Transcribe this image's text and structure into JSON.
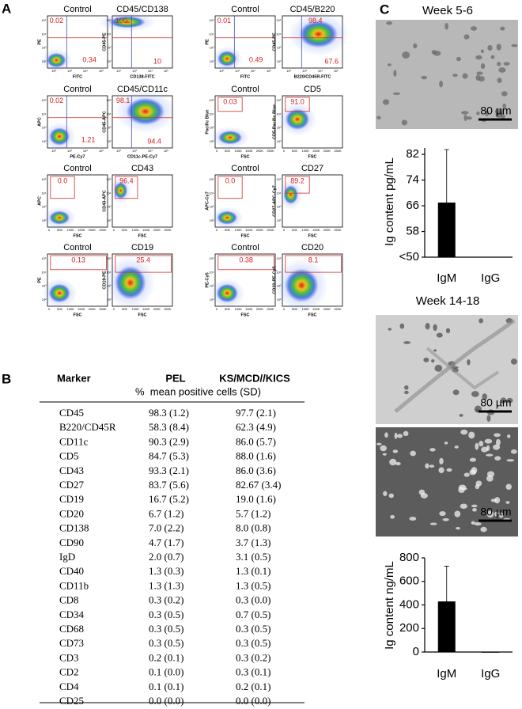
{
  "panel_labels": [
    "A",
    "B",
    "C"
  ],
  "flow": {
    "log_ticks": [
      "10²",
      "10³",
      "10⁴",
      "10⁵"
    ],
    "fsc_ticks": [
      "0",
      "50K",
      "100K",
      "150K",
      "200K",
      "250K"
    ],
    "plots": [
      {
        "title": "Control",
        "y_label": "PE",
        "x_label": "FITC",
        "gates": [
          "0.02",
          "0.34"
        ]
      },
      {
        "title": "CD45/CD138",
        "y_label": "CD45-PE",
        "x_label": "CD138-FITC",
        "gates": [
          "100",
          "10"
        ]
      },
      {
        "title": "Control",
        "y_label": "PE",
        "x_label": "FITC",
        "gates": [
          "0.01",
          "0.49"
        ]
      },
      {
        "title": "CD45/B220",
        "y_label": "CD45-PE",
        "x_label": "B220/CD45R-FITC",
        "gates": [
          "98.4",
          "67.6"
        ]
      },
      {
        "title": "Control",
        "y_label": "APC",
        "x_label": "PE-Cy7",
        "gates": [
          "0.02",
          "1.21"
        ]
      },
      {
        "title": "CD45/CD11c",
        "y_label": "CD45-APC",
        "x_label": "CD11c-PE-Cy7",
        "gates": [
          "98.1",
          "94.4"
        ]
      },
      {
        "title": "Control",
        "y_label": "Pacific Blue",
        "x_label": "FSC",
        "gates": [
          "0.03"
        ]
      },
      {
        "title": "CD5",
        "y_label": "CD5-Pacific Blue",
        "x_label": "FSC",
        "gates": [
          "91.0"
        ]
      },
      {
        "title": "Control",
        "y_label": "APC",
        "x_label": "FSC",
        "gates": [
          "0.0"
        ]
      },
      {
        "title": "CD43",
        "y_label": "CD43-APC",
        "x_label": "FSC",
        "gates": [
          "96.4"
        ]
      },
      {
        "title": "Control",
        "y_label": "APC-Cy7",
        "x_label": "FSC",
        "gates": [
          "0.0"
        ]
      },
      {
        "title": "CD27",
        "y_label": "CD27-APC-Cy7",
        "x_label": "FSC",
        "gates": [
          "89.2"
        ]
      },
      {
        "title": "Control",
        "y_label": "PE",
        "x_label": "FSC",
        "gates": [
          "0.13"
        ]
      },
      {
        "title": "CD19",
        "y_label": "CD19-PE",
        "x_label": "FSC",
        "gates": [
          "25.4"
        ]
      },
      {
        "title": "Control",
        "y_label": "PE-Cy5",
        "x_label": "FSC",
        "gates": [
          "0.38"
        ]
      },
      {
        "title": "CD20",
        "y_label": "CD20-PE-Cy5",
        "x_label": "FSC",
        "gates": [
          "8.1"
        ]
      }
    ]
  },
  "table": {
    "headers": [
      "Marker",
      "PEL",
      "KS/MCD//KICS"
    ],
    "subheader": "%  mean positive cells (SD)",
    "rows": [
      [
        "CD45",
        "98.3 (1.2)",
        "97.7 (2.1)"
      ],
      [
        "B220/CD45R",
        "58.3 (8.4)",
        "62.3 (4.9)"
      ],
      [
        "CD11c",
        "90.3 (2.9)",
        "86.0 (5.7)"
      ],
      [
        "CD5",
        "84.7 (5.3)",
        "88.0 (1.6)"
      ],
      [
        "CD43",
        "93.3 (2.1)",
        "86.0 (3.6)"
      ],
      [
        "CD27",
        "83.7 (5.6)",
        "82.67 (3.4)"
      ],
      [
        "CD19",
        "16.7 (5.2)",
        "19.0 (1.6)"
      ],
      [
        "CD20",
        "6.7 (1.2)",
        "5.7 (1.2)"
      ],
      [
        "CD138",
        "7.0 (2.2)",
        "8.0 (0.8)"
      ],
      [
        "CD90",
        "4.7 (1.7)",
        "3.7 (1.3)"
      ],
      [
        "IgD",
        "2.0 (0.7)",
        "3.1 (0.5)"
      ],
      [
        "CD40",
        "1.3 (0.3)",
        "1.3 (0.1)"
      ],
      [
        "CD11b",
        "1.3 (1.3)",
        "1.3 (0.5)"
      ],
      [
        "CD8",
        "0.3 (0.2)",
        "0.3 (0.0)"
      ],
      [
        "CD34",
        "0.3 (0.5)",
        "0.7 (0.5)"
      ],
      [
        "CD68",
        "0.3 (0.5)",
        "0.3 (0.5)"
      ],
      [
        "CD73",
        "0.3 (0.5)",
        "0.3 (0.5)"
      ],
      [
        "CD3",
        "0.2 (0.1)",
        "0.3 (0.2)"
      ],
      [
        "CD2",
        "0.1 (0.0)",
        "0.3 (0.1)"
      ],
      [
        "CD4",
        "0.1 (0.1)",
        "0.2 (0.1)"
      ],
      [
        "CD25",
        "0.0 (0.0)",
        "0.0 (0.0)"
      ]
    ]
  },
  "weeks": [
    "Week 5-6",
    "Week 14-18"
  ],
  "micrographs": [
    {
      "scale_label": "80 µm"
    },
    {
      "scale_label": "80 µm"
    },
    {
      "scale_label": "80 µm"
    }
  ],
  "chart_data": [
    {
      "type": "bar",
      "y_label": "Ig content pg/mL",
      "categories": [
        "IgM",
        "IgG"
      ],
      "values": [
        67,
        null
      ],
      "errors": [
        16.5,
        null
      ],
      "ylim": [
        50,
        84
      ],
      "yticks": [
        {
          "value": 50,
          "label": "<50"
        },
        58,
        66,
        74,
        82
      ],
      "color": "#000000"
    },
    {
      "type": "bar",
      "y_label": "Ig content ng/mL",
      "categories": [
        "IgM",
        "IgG"
      ],
      "values": [
        430,
        0
      ],
      "errors": [
        300,
        null
      ],
      "ylim": [
        0,
        800
      ],
      "yticks": [
        0,
        200,
        400,
        600,
        800
      ],
      "color": "#000000"
    }
  ]
}
